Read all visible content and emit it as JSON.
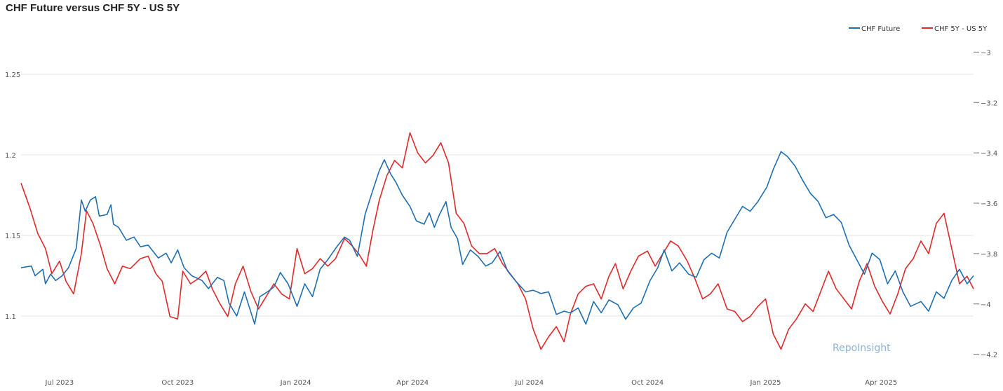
{
  "chart_data": {
    "type": "line",
    "title": "CHF Future versus CHF 5Y - US 5Y",
    "watermark": "RepoInsight",
    "legend_position": "top-right",
    "grid": true,
    "x_ticks": [
      "Jul 2023",
      "Oct 2023",
      "Jan 2024",
      "Apr 2024",
      "Jul 2024",
      "Oct 2024",
      "Jan 2025",
      "Apr 2025"
    ],
    "y_left": {
      "ticks": [
        "1.1",
        "1.15",
        "1.2",
        "1.25"
      ],
      "ylim": [
        1.07,
        1.27
      ]
    },
    "y_right": {
      "ticks": [
        "-3",
        "-3.2",
        "-3.4",
        "-3.6",
        "-3.8",
        "-4",
        "-4.2"
      ],
      "ylim": [
        -4.24,
        -2.96
      ]
    },
    "x_range": [
      "2023-06-01",
      "2025-06-12"
    ],
    "series": [
      {
        "name": "CHF Future",
        "color": "#1f6fb0",
        "axis": "left",
        "points": [
          [
            "2023-06-01",
            1.13
          ],
          [
            "2023-06-09",
            1.131
          ],
          [
            "2023-06-12",
            1.125
          ],
          [
            "2023-06-18",
            1.129
          ],
          [
            "2023-06-20",
            1.12
          ],
          [
            "2023-06-24",
            1.126
          ],
          [
            "2023-06-28",
            1.122
          ],
          [
            "2023-07-03",
            1.125
          ],
          [
            "2023-07-08",
            1.13
          ],
          [
            "2023-07-14",
            1.142
          ],
          [
            "2023-07-18",
            1.172
          ],
          [
            "2023-07-21",
            1.165
          ],
          [
            "2023-07-25",
            1.172
          ],
          [
            "2023-07-29",
            1.174
          ],
          [
            "2023-08-01",
            1.162
          ],
          [
            "2023-08-07",
            1.163
          ],
          [
            "2023-08-10",
            1.169
          ],
          [
            "2023-08-12",
            1.157
          ],
          [
            "2023-08-16",
            1.155
          ],
          [
            "2023-08-22",
            1.147
          ],
          [
            "2023-08-28",
            1.149
          ],
          [
            "2023-09-02",
            1.143
          ],
          [
            "2023-09-08",
            1.144
          ],
          [
            "2023-09-16",
            1.136
          ],
          [
            "2023-09-22",
            1.139
          ],
          [
            "2023-09-26",
            1.133
          ],
          [
            "2023-10-01",
            1.141
          ],
          [
            "2023-10-06",
            1.13
          ],
          [
            "2023-10-12",
            1.125
          ],
          [
            "2023-10-20",
            1.122
          ],
          [
            "2023-10-25",
            1.117
          ],
          [
            "2023-11-01",
            1.124
          ],
          [
            "2023-11-06",
            1.122
          ],
          [
            "2023-11-10",
            1.108
          ],
          [
            "2023-11-16",
            1.1
          ],
          [
            "2023-11-22",
            1.115
          ],
          [
            "2023-11-26",
            1.105
          ],
          [
            "2023-11-30",
            1.095
          ],
          [
            "2023-12-04",
            1.112
          ],
          [
            "2023-12-10",
            1.115
          ],
          [
            "2023-12-15",
            1.118
          ],
          [
            "2023-12-20",
            1.127
          ],
          [
            "2023-12-26",
            1.12
          ],
          [
            "2024-01-02",
            1.106
          ],
          [
            "2024-01-08",
            1.12
          ],
          [
            "2024-01-14",
            1.112
          ],
          [
            "2024-01-20",
            1.129
          ],
          [
            "2024-01-26",
            1.135
          ],
          [
            "2024-02-02",
            1.143
          ],
          [
            "2024-02-08",
            1.149
          ],
          [
            "2024-02-12",
            1.147
          ],
          [
            "2024-02-18",
            1.137
          ],
          [
            "2024-02-24",
            1.163
          ],
          [
            "2024-03-01",
            1.178
          ],
          [
            "2024-03-06",
            1.19
          ],
          [
            "2024-03-10",
            1.197
          ],
          [
            "2024-03-15",
            1.188
          ],
          [
            "2024-03-19",
            1.183
          ],
          [
            "2024-03-24",
            1.175
          ],
          [
            "2024-03-30",
            1.168
          ],
          [
            "2024-04-04",
            1.159
          ],
          [
            "2024-04-10",
            1.157
          ],
          [
            "2024-04-14",
            1.164
          ],
          [
            "2024-04-18",
            1.155
          ],
          [
            "2024-04-22",
            1.163
          ],
          [
            "2024-04-27",
            1.171
          ],
          [
            "2024-05-01",
            1.155
          ],
          [
            "2024-05-06",
            1.148
          ],
          [
            "2024-05-10",
            1.132
          ],
          [
            "2024-05-16",
            1.141
          ],
          [
            "2024-05-22",
            1.137
          ],
          [
            "2024-05-28",
            1.131
          ],
          [
            "2024-06-02",
            1.133
          ],
          [
            "2024-06-08",
            1.14
          ],
          [
            "2024-06-14",
            1.128
          ],
          [
            "2024-06-20",
            1.122
          ],
          [
            "2024-06-28",
            1.115
          ],
          [
            "2024-07-04",
            1.116
          ],
          [
            "2024-07-10",
            1.114
          ],
          [
            "2024-07-16",
            1.115
          ],
          [
            "2024-07-22",
            1.101
          ],
          [
            "2024-07-28",
            1.103
          ],
          [
            "2024-08-02",
            1.102
          ],
          [
            "2024-08-08",
            1.105
          ],
          [
            "2024-08-14",
            1.095
          ],
          [
            "2024-08-20",
            1.109
          ],
          [
            "2024-08-26",
            1.102
          ],
          [
            "2024-09-01",
            1.11
          ],
          [
            "2024-09-08",
            1.107
          ],
          [
            "2024-09-14",
            1.098
          ],
          [
            "2024-09-20",
            1.105
          ],
          [
            "2024-09-26",
            1.108
          ],
          [
            "2024-10-03",
            1.122
          ],
          [
            "2024-10-09",
            1.13
          ],
          [
            "2024-10-14",
            1.141
          ],
          [
            "2024-10-20",
            1.128
          ],
          [
            "2024-10-26",
            1.133
          ],
          [
            "2024-11-02",
            1.126
          ],
          [
            "2024-11-08",
            1.124
          ],
          [
            "2024-11-14",
            1.135
          ],
          [
            "2024-11-20",
            1.139
          ],
          [
            "2024-11-26",
            1.136
          ],
          [
            "2024-12-02",
            1.152
          ],
          [
            "2024-12-08",
            1.16
          ],
          [
            "2024-12-14",
            1.168
          ],
          [
            "2024-12-20",
            1.165
          ],
          [
            "2024-12-26",
            1.171
          ],
          [
            "2025-01-02",
            1.18
          ],
          [
            "2025-01-07",
            1.191
          ],
          [
            "2025-01-13",
            1.202
          ],
          [
            "2025-01-18",
            1.199
          ],
          [
            "2025-01-24",
            1.193
          ],
          [
            "2025-01-30",
            1.184
          ],
          [
            "2025-02-05",
            1.176
          ],
          [
            "2025-02-11",
            1.171
          ],
          [
            "2025-02-17",
            1.161
          ],
          [
            "2025-02-23",
            1.163
          ],
          [
            "2025-03-01",
            1.158
          ],
          [
            "2025-03-07",
            1.144
          ],
          [
            "2025-03-13",
            1.135
          ],
          [
            "2025-03-19",
            1.126
          ],
          [
            "2025-03-25",
            1.139
          ],
          [
            "2025-03-31",
            1.135
          ],
          [
            "2025-04-06",
            1.12
          ],
          [
            "2025-04-12",
            1.128
          ],
          [
            "2025-04-18",
            1.115
          ],
          [
            "2025-04-24",
            1.106
          ],
          [
            "2025-05-02",
            1.109
          ],
          [
            "2025-05-08",
            1.103
          ],
          [
            "2025-05-14",
            1.115
          ],
          [
            "2025-05-20",
            1.111
          ],
          [
            "2025-05-26",
            1.122
          ],
          [
            "2025-06-01",
            1.129
          ],
          [
            "2025-06-07",
            1.12
          ],
          [
            "2025-06-12",
            1.125
          ]
        ]
      },
      {
        "name": "CHF 5Y - US 5Y",
        "color": "#e02a2a",
        "axis": "right",
        "points": [
          [
            "2023-06-01",
            -3.52
          ],
          [
            "2023-06-08",
            -3.62
          ],
          [
            "2023-06-14",
            -3.72
          ],
          [
            "2023-06-20",
            -3.78
          ],
          [
            "2023-06-25",
            -3.88
          ],
          [
            "2023-07-01",
            -3.83
          ],
          [
            "2023-07-06",
            -3.91
          ],
          [
            "2023-07-12",
            -3.96
          ],
          [
            "2023-07-18",
            -3.8
          ],
          [
            "2023-07-22",
            -3.63
          ],
          [
            "2023-07-27",
            -3.68
          ],
          [
            "2023-08-02",
            -3.77
          ],
          [
            "2023-08-07",
            -3.86
          ],
          [
            "2023-08-13",
            -3.92
          ],
          [
            "2023-08-19",
            -3.85
          ],
          [
            "2023-08-25",
            -3.86
          ],
          [
            "2023-09-02",
            -3.82
          ],
          [
            "2023-09-08",
            -3.81
          ],
          [
            "2023-09-14",
            -3.88
          ],
          [
            "2023-09-19",
            -3.91
          ],
          [
            "2023-09-25",
            -4.05
          ],
          [
            "2023-10-01",
            -4.06
          ],
          [
            "2023-10-05",
            -3.87
          ],
          [
            "2023-10-11",
            -3.92
          ],
          [
            "2023-10-17",
            -3.9
          ],
          [
            "2023-10-23",
            -3.87
          ],
          [
            "2023-10-28",
            -3.94
          ],
          [
            "2023-11-03",
            -4.0
          ],
          [
            "2023-11-09",
            -4.05
          ],
          [
            "2023-11-15",
            -3.92
          ],
          [
            "2023-11-21",
            -3.85
          ],
          [
            "2023-11-27",
            -3.95
          ],
          [
            "2023-12-03",
            -4.02
          ],
          [
            "2023-12-09",
            -3.97
          ],
          [
            "2023-12-15",
            -3.92
          ],
          [
            "2023-12-21",
            -3.96
          ],
          [
            "2023-12-27",
            -3.98
          ],
          [
            "2024-01-02",
            -3.78
          ],
          [
            "2024-01-08",
            -3.88
          ],
          [
            "2024-01-14",
            -3.86
          ],
          [
            "2024-01-20",
            -3.82
          ],
          [
            "2024-01-26",
            -3.85
          ],
          [
            "2024-02-01",
            -3.82
          ],
          [
            "2024-02-08",
            -3.74
          ],
          [
            "2024-02-14",
            -3.77
          ],
          [
            "2024-02-19",
            -3.8
          ],
          [
            "2024-02-25",
            -3.85
          ],
          [
            "2024-03-01",
            -3.71
          ],
          [
            "2024-03-06",
            -3.59
          ],
          [
            "2024-03-12",
            -3.49
          ],
          [
            "2024-03-18",
            -3.43
          ],
          [
            "2024-03-24",
            -3.46
          ],
          [
            "2024-03-30",
            -3.32
          ],
          [
            "2024-04-05",
            -3.4
          ],
          [
            "2024-04-11",
            -3.44
          ],
          [
            "2024-04-17",
            -3.41
          ],
          [
            "2024-04-23",
            -3.36
          ],
          [
            "2024-04-29",
            -3.44
          ],
          [
            "2024-05-05",
            -3.64
          ],
          [
            "2024-05-11",
            -3.68
          ],
          [
            "2024-05-17",
            -3.77
          ],
          [
            "2024-05-23",
            -3.8
          ],
          [
            "2024-05-29",
            -3.8
          ],
          [
            "2024-06-04",
            -3.78
          ],
          [
            "2024-06-10",
            -3.84
          ],
          [
            "2024-06-16",
            -3.88
          ],
          [
            "2024-06-22",
            -3.92
          ],
          [
            "2024-06-28",
            -3.98
          ],
          [
            "2024-07-04",
            -4.1
          ],
          [
            "2024-07-10",
            -4.18
          ],
          [
            "2024-07-16",
            -4.13
          ],
          [
            "2024-07-22",
            -4.09
          ],
          [
            "2024-07-28",
            -4.15
          ],
          [
            "2024-08-02",
            -4.04
          ],
          [
            "2024-08-08",
            -3.96
          ],
          [
            "2024-08-14",
            -3.93
          ],
          [
            "2024-08-20",
            -3.92
          ],
          [
            "2024-08-26",
            -3.98
          ],
          [
            "2024-09-01",
            -3.89
          ],
          [
            "2024-09-06",
            -3.84
          ],
          [
            "2024-09-12",
            -3.94
          ],
          [
            "2024-09-18",
            -3.87
          ],
          [
            "2024-09-24",
            -3.81
          ],
          [
            "2024-10-01",
            -3.79
          ],
          [
            "2024-10-07",
            -3.85
          ],
          [
            "2024-10-13",
            -3.8
          ],
          [
            "2024-10-19",
            -3.75
          ],
          [
            "2024-10-25",
            -3.77
          ],
          [
            "2024-11-01",
            -3.83
          ],
          [
            "2024-11-07",
            -3.9
          ],
          [
            "2024-11-13",
            -3.98
          ],
          [
            "2024-11-19",
            -3.96
          ],
          [
            "2024-11-25",
            -3.92
          ],
          [
            "2024-12-02",
            -4.02
          ],
          [
            "2024-12-08",
            -4.03
          ],
          [
            "2024-12-14",
            -4.07
          ],
          [
            "2024-12-20",
            -4.05
          ],
          [
            "2024-12-26",
            -4.01
          ],
          [
            "2025-01-01",
            -3.98
          ],
          [
            "2025-01-07",
            -4.12
          ],
          [
            "2025-01-13",
            -4.18
          ],
          [
            "2025-01-19",
            -4.1
          ],
          [
            "2025-01-25",
            -4.06
          ],
          [
            "2025-02-01",
            -4.0
          ],
          [
            "2025-02-07",
            -4.03
          ],
          [
            "2025-02-13",
            -3.95
          ],
          [
            "2025-02-19",
            -3.87
          ],
          [
            "2025-02-25",
            -3.94
          ],
          [
            "2025-03-03",
            -3.98
          ],
          [
            "2025-03-09",
            -4.02
          ],
          [
            "2025-03-15",
            -3.91
          ],
          [
            "2025-03-21",
            -3.84
          ],
          [
            "2025-03-27",
            -3.93
          ],
          [
            "2025-04-02",
            -3.99
          ],
          [
            "2025-04-08",
            -4.04
          ],
          [
            "2025-04-14",
            -3.96
          ],
          [
            "2025-04-20",
            -3.86
          ],
          [
            "2025-04-26",
            -3.82
          ],
          [
            "2025-05-02",
            -3.75
          ],
          [
            "2025-05-08",
            -3.8
          ],
          [
            "2025-05-14",
            -3.68
          ],
          [
            "2025-05-20",
            -3.64
          ],
          [
            "2025-05-26",
            -3.78
          ],
          [
            "2025-06-01",
            -3.92
          ],
          [
            "2025-06-07",
            -3.89
          ],
          [
            "2025-06-12",
            -3.94
          ]
        ]
      }
    ]
  },
  "legend": {
    "items": [
      {
        "label": "CHF Future",
        "color": "#1f6fb0"
      },
      {
        "label": "CHF 5Y - US 5Y",
        "color": "#e02a2a"
      }
    ]
  }
}
